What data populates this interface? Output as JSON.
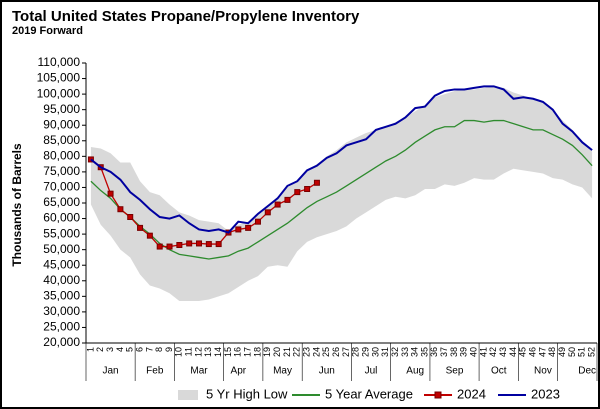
{
  "chart_data": {
    "type": "line",
    "title": "Total United States Propane/Propylene Inventory",
    "subtitle": "2019 Forward",
    "y_label": "Thousands of Barrels",
    "categories": [
      "1",
      "2",
      "3",
      "4",
      "5",
      "6",
      "7",
      "8",
      "9",
      "10",
      "11",
      "12",
      "13",
      "14",
      "15",
      "16",
      "17",
      "18",
      "19",
      "20",
      "21",
      "22",
      "23",
      "24",
      "25",
      "26",
      "27",
      "28",
      "29",
      "30",
      "31",
      "32",
      "33",
      "34",
      "35",
      "36",
      "37",
      "38",
      "39",
      "40",
      "41",
      "42",
      "43",
      "44",
      "45",
      "46",
      "47",
      "48",
      "49",
      "50",
      "51",
      "52"
    ],
    "months": [
      "Jan",
      "Feb",
      "Mar",
      "Apr",
      "May",
      "Jun",
      "Jul",
      "Aug",
      "Sep",
      "Oct",
      "Nov",
      "Dec"
    ],
    "ylim": [
      20000,
      110000
    ],
    "yticks": [
      {
        "value": 20000,
        "label": "20,000"
      },
      {
        "value": 25000,
        "label": "25,000"
      },
      {
        "value": 30000,
        "label": "30,000"
      },
      {
        "value": 35000,
        "label": "35,000"
      },
      {
        "value": 40000,
        "label": "40,000"
      },
      {
        "value": 45000,
        "label": "45,000"
      },
      {
        "value": 50000,
        "label": "50,000"
      },
      {
        "value": 55000,
        "label": "55,000"
      },
      {
        "value": 60000,
        "label": "60,000"
      },
      {
        "value": 65000,
        "label": "65,000"
      },
      {
        "value": 70000,
        "label": "70,000"
      },
      {
        "value": 75000,
        "label": "75,000"
      },
      {
        "value": 80000,
        "label": "80,000"
      },
      {
        "value": 85000,
        "label": "85,000"
      },
      {
        "value": 90000,
        "label": "90,000"
      },
      {
        "value": 95000,
        "label": "95,000"
      },
      {
        "value": 100000,
        "label": "100,000"
      },
      {
        "value": 105000,
        "label": "105,000"
      },
      {
        "value": 110000,
        "label": "110,000"
      }
    ],
    "series": [
      {
        "name": "5 Yr High Low",
        "color": "#d9d9d9",
        "high": [
          83000,
          82500,
          81000,
          78000,
          78000,
          72000,
          68500,
          67500,
          64500,
          62000,
          61000,
          59500,
          59000,
          58500,
          56000,
          58000,
          59000,
          61000,
          64000,
          67000,
          70000,
          72000,
          75500,
          77500,
          80000,
          82000,
          84500,
          86000,
          87500,
          88500,
          89500,
          91000,
          92500,
          94500,
          96500,
          99000,
          100000,
          101000,
          101500,
          101500,
          102000,
          102500,
          102000,
          100500,
          99500,
          98500,
          97500,
          95000,
          91500,
          88500,
          84500,
          81500
        ],
        "low": [
          64500,
          58000,
          54500,
          50000,
          47500,
          42000,
          38500,
          37500,
          36000,
          33500,
          33500,
          33500,
          34000,
          35000,
          36000,
          38000,
          40000,
          41500,
          44500,
          45000,
          44500,
          49500,
          52500,
          54000,
          55000,
          56000,
          57500,
          60000,
          62000,
          64000,
          66000,
          67000,
          66500,
          67500,
          69500,
          69500,
          71000,
          70500,
          71500,
          73000,
          72500,
          72500,
          74500,
          76000,
          75500,
          75000,
          74500,
          73000,
          72500,
          71000,
          70000,
          66500
        ]
      },
      {
        "name": "5 Year Average",
        "color": "#2e8b2e",
        "values": [
          72000,
          69000,
          66500,
          63000,
          60500,
          57500,
          55000,
          52000,
          50000,
          48500,
          48000,
          47500,
          47000,
          47500,
          48000,
          49500,
          50500,
          52500,
          54500,
          56500,
          58500,
          61000,
          63500,
          65500,
          67000,
          68500,
          70500,
          72500,
          74500,
          76500,
          78500,
          80000,
          82000,
          84500,
          86500,
          88500,
          89500,
          89500,
          91500,
          91500,
          91000,
          91500,
          91500,
          90500,
          89500,
          88500,
          88500,
          87000,
          85500,
          83500,
          80500,
          77000
        ]
      },
      {
        "name": "2024",
        "color": "#c00000",
        "marker": "square",
        "values": [
          79000,
          76500,
          68000,
          63000,
          60500,
          57000,
          54500,
          51000,
          51000,
          51500,
          52000,
          52000,
          51800,
          51800,
          55500,
          56500,
          57000,
          59000,
          62000,
          64500,
          66000,
          68500,
          69500,
          71500,
          null,
          null,
          null,
          null,
          null,
          null,
          null,
          null,
          null,
          null,
          null,
          null,
          null,
          null,
          null,
          null,
          null,
          null,
          null,
          null,
          null,
          null,
          null,
          null,
          null,
          null,
          null,
          null
        ]
      },
      {
        "name": "2023",
        "color": "#0000a0",
        "values": [
          79000,
          76500,
          75000,
          72500,
          68500,
          66000,
          63000,
          60500,
          60000,
          61000,
          58500,
          56500,
          56000,
          56500,
          55500,
          59000,
          58500,
          61500,
          64000,
          66500,
          70500,
          72000,
          75500,
          77000,
          79500,
          81000,
          83500,
          84500,
          85500,
          88500,
          89500,
          90500,
          92500,
          95500,
          96000,
          99500,
          101000,
          101500,
          101500,
          102000,
          102500,
          102500,
          101500,
          98500,
          99000,
          98500,
          97500,
          95000,
          90500,
          88000,
          84500,
          82000
        ]
      }
    ]
  }
}
